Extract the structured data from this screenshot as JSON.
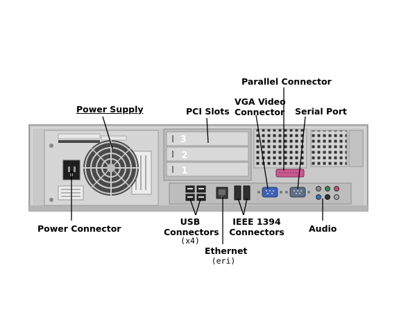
{
  "labels": {
    "power_supply": "Power Supply",
    "pci_slots": "PCI Slots",
    "vga_line1": "VGA Video",
    "vga_line2": "Connector",
    "parallel_connector": "Parallel Connector",
    "serial_port": "Serial Port",
    "power_connector": "Power Connector",
    "usb_line1": "USB",
    "usb_line2": "Connectors",
    "usb_count": "(x4)",
    "ethernet": "Ethernet",
    "ethernet_sub": "(eri)",
    "ieee_line1": "IEEE 1394",
    "ieee_line2": "Connectors",
    "audio": "Audio"
  },
  "slots": {
    "slot3": "3",
    "slot2": "2",
    "slot1": "1"
  },
  "colors": {
    "chassis": "#c9c9c9",
    "chassis_edge": "#8a8a8a",
    "vga_port": "#3e63b5",
    "parallel_port": "#c85a8e",
    "leader_line": "#000000"
  }
}
